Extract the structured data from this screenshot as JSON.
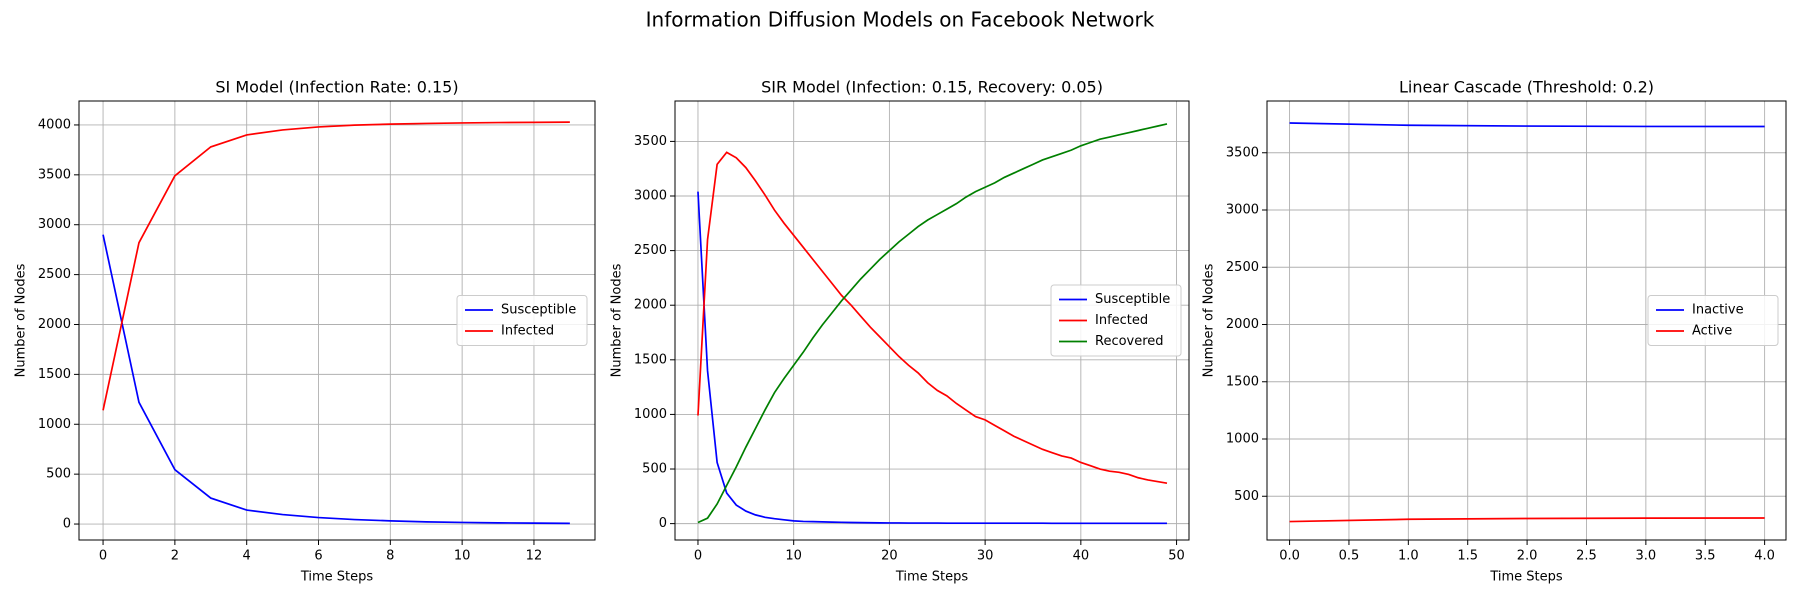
{
  "title": "Information Diffusion Models on Facebook Network",
  "chart_data": [
    {
      "type": "line",
      "title": "SI Model (Infection Rate: 0.15)",
      "x_label": "Time Steps",
      "y_label": "Number of Nodes",
      "x": [
        0,
        1,
        2,
        3,
        4,
        5,
        6,
        7,
        8,
        9,
        10,
        11,
        12,
        13
      ],
      "series": [
        {
          "name": "Susceptible",
          "color": "#0000ff",
          "values": [
            2900,
            1220,
            545,
            260,
            140,
            95,
            65,
            45,
            32,
            22,
            16,
            12,
            9,
            7
          ]
        },
        {
          "name": "Infected",
          "color": "#ff0000",
          "values": [
            1140,
            2820,
            3490,
            3780,
            3900,
            3950,
            3980,
            3998,
            4008,
            4015,
            4020,
            4024,
            4026,
            4028
          ]
        }
      ],
      "xlim": [
        -0.67,
        13.7
      ],
      "ylim": [
        -160,
        4240
      ],
      "xticks": [
        0,
        2,
        4,
        6,
        8,
        10,
        12
      ],
      "yticks": [
        0,
        500,
        1000,
        1500,
        2000,
        2500,
        3000,
        3500,
        4000
      ],
      "grid": true,
      "legend": "center right"
    },
    {
      "type": "line",
      "title": "SIR Model (Infection: 0.15, Recovery: 0.05)",
      "x_label": "Time Steps",
      "y_label": "Number of Nodes",
      "x": [
        0,
        1,
        2,
        3,
        4,
        5,
        6,
        7,
        8,
        9,
        10,
        11,
        12,
        13,
        14,
        15,
        16,
        17,
        18,
        19,
        20,
        21,
        22,
        23,
        24,
        25,
        26,
        27,
        28,
        29,
        30,
        31,
        32,
        33,
        34,
        35,
        36,
        37,
        38,
        39,
        40,
        41,
        42,
        43,
        44,
        45,
        46,
        47,
        48,
        49
      ],
      "series": [
        {
          "name": "Susceptible",
          "color": "#0000ff",
          "values": [
            3040,
            1400,
            560,
            280,
            170,
            115,
            80,
            58,
            45,
            35,
            25,
            20,
            18,
            16,
            14,
            12,
            10,
            9,
            8,
            7,
            6,
            6,
            5,
            5,
            5,
            5,
            4,
            4,
            4,
            4,
            4,
            4,
            4,
            4,
            4,
            4,
            4,
            3,
            3,
            3,
            3,
            3,
            3,
            3,
            3,
            3,
            3,
            3,
            3,
            3
          ]
        },
        {
          "name": "Infected",
          "color": "#ff0000",
          "values": [
            990,
            2600,
            3290,
            3400,
            3350,
            3260,
            3140,
            3010,
            2870,
            2750,
            2640,
            2530,
            2420,
            2310,
            2200,
            2090,
            2000,
            1900,
            1800,
            1710,
            1620,
            1530,
            1450,
            1380,
            1290,
            1220,
            1170,
            1100,
            1040,
            980,
            950,
            900,
            850,
            800,
            760,
            720,
            680,
            650,
            620,
            600,
            560,
            530,
            500,
            480,
            470,
            450,
            420,
            400,
            385,
            370
          ]
        },
        {
          "name": "Recovered",
          "color": "#008000",
          "values": [
            10,
            50,
            180,
            350,
            520,
            700,
            870,
            1040,
            1200,
            1330,
            1450,
            1570,
            1700,
            1820,
            1930,
            2040,
            2140,
            2240,
            2330,
            2420,
            2500,
            2580,
            2650,
            2720,
            2780,
            2830,
            2880,
            2930,
            2990,
            3040,
            3080,
            3120,
            3170,
            3210,
            3250,
            3290,
            3330,
            3360,
            3390,
            3420,
            3460,
            3490,
            3520,
            3540,
            3560,
            3580,
            3600,
            3620,
            3640,
            3660
          ]
        }
      ],
      "xlim": [
        -2.4,
        51.3
      ],
      "ylim": [
        -150,
        3870
      ],
      "xticks": [
        0,
        10,
        20,
        30,
        40,
        50
      ],
      "yticks": [
        0,
        500,
        1000,
        1500,
        2000,
        2500,
        3000,
        3500
      ],
      "grid": true,
      "legend": "center right"
    },
    {
      "type": "line",
      "title": "Linear Cascade (Threshold: 0.2)",
      "x_label": "Time Steps",
      "y_label": "Number of Nodes",
      "x": [
        0,
        1,
        2,
        3,
        4
      ],
      "series": [
        {
          "name": "Inactive",
          "color": "#0000ff",
          "values": [
            3760,
            3740,
            3733,
            3730,
            3729
          ]
        },
        {
          "name": "Active",
          "color": "#ff0000",
          "values": [
            279,
            299,
            306,
            309,
            310
          ]
        }
      ],
      "xlim": [
        -0.19,
        4.18
      ],
      "ylim": [
        118,
        3952
      ],
      "xticks": [
        {
          "value": 0,
          "label": "0.0"
        },
        {
          "value": 0.5,
          "label": "0.5"
        },
        {
          "value": 1,
          "label": "1.0"
        },
        {
          "value": 1.5,
          "label": "1.5"
        },
        {
          "value": 2,
          "label": "2.0"
        },
        {
          "value": 2.5,
          "label": "2.5"
        },
        {
          "value": 3,
          "label": "3.0"
        },
        {
          "value": 3.5,
          "label": "3.5"
        },
        {
          "value": 4,
          "label": "4.0"
        }
      ],
      "yticks": [
        500,
        1000,
        1500,
        2000,
        2500,
        3000,
        3500
      ],
      "grid": true,
      "legend": "center right"
    }
  ]
}
